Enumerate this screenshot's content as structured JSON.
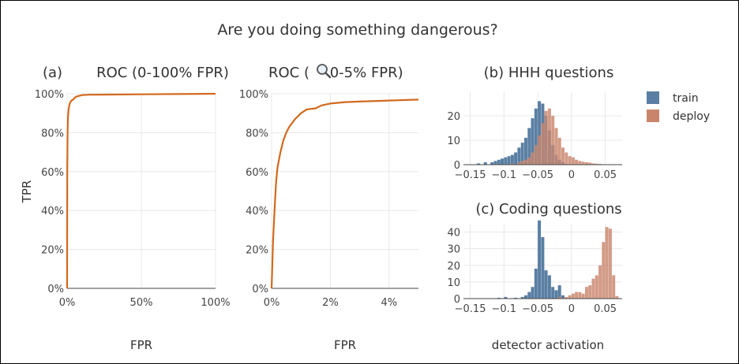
{
  "figure_title": "Are you doing something dangerous?",
  "panel_label_a": "(a)",
  "roc_full_title": "ROC (0-100% FPR)",
  "roc_zoom_title_pre": "ROC (",
  "roc_zoom_title_post": " 0-5% FPR)",
  "zoom_icon": "magnifier-icon",
  "hist_hhh_title": "(b) HHH questions",
  "hist_coding_title": "(c) Coding questions",
  "ylabel": "TPR",
  "xlabel_roc_full": "FPR",
  "xlabel_roc_zoom": "FPR",
  "xlabel_hist": "detector activation",
  "legend": [
    {
      "label": "train",
      "color": "#5a7fa3"
    },
    {
      "label": "deploy",
      "color": "#c9856c"
    }
  ],
  "colors": {
    "roc_line": "#d2691e",
    "train": "#5a7fa3",
    "deploy": "#c9856c"
  },
  "chart_data": [
    {
      "type": "line",
      "title": "ROC (0-100% FPR)",
      "xlabel": "FPR",
      "ylabel": "TPR",
      "xlim": [
        0,
        100
      ],
      "ylim": [
        0,
        100
      ],
      "x_ticks": [
        "0%",
        "50%",
        "100%"
      ],
      "y_ticks": [
        "0%",
        "20%",
        "40%",
        "60%",
        "80%",
        "100%"
      ],
      "x": [
        0,
        0.1,
        0.3,
        0.6,
        1,
        1.5,
        2,
        3,
        4,
        6,
        10,
        15,
        30,
        50,
        100
      ],
      "y": [
        0,
        60,
        80,
        88,
        92,
        94,
        95.5,
        96.5,
        97,
        98.5,
        99.3,
        99.5,
        99.6,
        99.7,
        100
      ]
    },
    {
      "type": "line",
      "title": "ROC (0-5% FPR)",
      "xlabel": "FPR",
      "xlim": [
        0,
        5
      ],
      "ylim": [
        0,
        100
      ],
      "x_ticks": [
        "0%",
        "2%",
        "4%"
      ],
      "y_ticks": [
        "0%",
        "20%",
        "40%",
        "60%",
        "80%",
        "100%"
      ],
      "x": [
        0,
        0.05,
        0.1,
        0.15,
        0.2,
        0.3,
        0.4,
        0.5,
        0.6,
        0.8,
        1.0,
        1.2,
        1.5,
        1.7,
        2.0,
        2.5,
        3.0,
        4.0,
        5.0
      ],
      "y": [
        0,
        25,
        40,
        54,
        62,
        70,
        76,
        80,
        83,
        87,
        90,
        92,
        92.5,
        94,
        95,
        95.7,
        96,
        96.5,
        97
      ]
    },
    {
      "type": "bar",
      "title": "(b) HHH questions",
      "xlabel": "detector activation",
      "xlim": [
        -0.16,
        0.075
      ],
      "ylim": [
        0,
        30
      ],
      "x_ticks": [
        "−0.15",
        "−0.1",
        "−0.05",
        "0",
        "0.05"
      ],
      "y_ticks": [
        "0",
        "10",
        "20"
      ],
      "bin_width": 0.005,
      "series": [
        {
          "name": "train",
          "bin_starts": [
            -0.14,
            -0.13,
            -0.12,
            -0.115,
            -0.11,
            -0.105,
            -0.1,
            -0.095,
            -0.09,
            -0.085,
            -0.08,
            -0.075,
            -0.07,
            -0.065,
            -0.06,
            -0.055,
            -0.05,
            -0.045,
            -0.04,
            -0.035,
            -0.03,
            -0.025,
            -0.02,
            -0.015
          ],
          "values": [
            0.5,
            1,
            1,
            1.5,
            2,
            2.5,
            3,
            3.5,
            4,
            5,
            7,
            9,
            11,
            15,
            19,
            23,
            26,
            25,
            20,
            14,
            8,
            4,
            2,
            1
          ]
        },
        {
          "name": "deploy",
          "bin_starts": [
            -0.09,
            -0.08,
            -0.075,
            -0.07,
            -0.065,
            -0.06,
            -0.055,
            -0.05,
            -0.045,
            -0.04,
            -0.035,
            -0.03,
            -0.025,
            -0.02,
            -0.015,
            -0.01,
            -0.005,
            0,
            0.005,
            0.01,
            0.015,
            0.02,
            0.025,
            0.03,
            0.035,
            0.04
          ],
          "values": [
            0.5,
            1,
            1.5,
            2,
            3,
            5,
            8,
            12,
            17,
            22,
            23,
            20,
            15,
            11,
            7,
            5,
            3.5,
            3,
            2,
            1.5,
            1.2,
            1,
            0.8,
            0.5,
            0.4,
            0.3
          ]
        }
      ]
    },
    {
      "type": "bar",
      "title": "(c) Coding questions",
      "xlabel": "detector activation",
      "xlim": [
        -0.16,
        0.075
      ],
      "ylim": [
        0,
        45
      ],
      "x_ticks": [
        "−0.15",
        "−0.1",
        "−0.05",
        "0",
        "0.05"
      ],
      "y_ticks": [
        "0",
        "10",
        "20",
        "30",
        "40"
      ],
      "bin_width": 0.005,
      "series": [
        {
          "name": "train",
          "bin_starts": [
            -0.11,
            -0.1,
            -0.085,
            -0.075,
            -0.07,
            -0.065,
            -0.06,
            -0.055,
            -0.05,
            -0.045,
            -0.04,
            -0.035,
            -0.03,
            -0.025,
            -0.02,
            -0.015
          ],
          "values": [
            0.5,
            1,
            0.5,
            1,
            2,
            4,
            7,
            18,
            47,
            37,
            17,
            14,
            7,
            5,
            8,
            2
          ]
        },
        {
          "name": "deploy",
          "bin_starts": [
            -0.02,
            -0.015,
            -0.01,
            -0.005,
            0,
            0.005,
            0.01,
            0.015,
            0.02,
            0.025,
            0.03,
            0.035,
            0.04,
            0.045,
            0.05,
            0.055,
            0.06,
            0.065
          ],
          "values": [
            1,
            0.5,
            1,
            2,
            3,
            4,
            4,
            3,
            7,
            8,
            12,
            14,
            20,
            34,
            43,
            42,
            14,
            1.5
          ]
        }
      ]
    }
  ]
}
